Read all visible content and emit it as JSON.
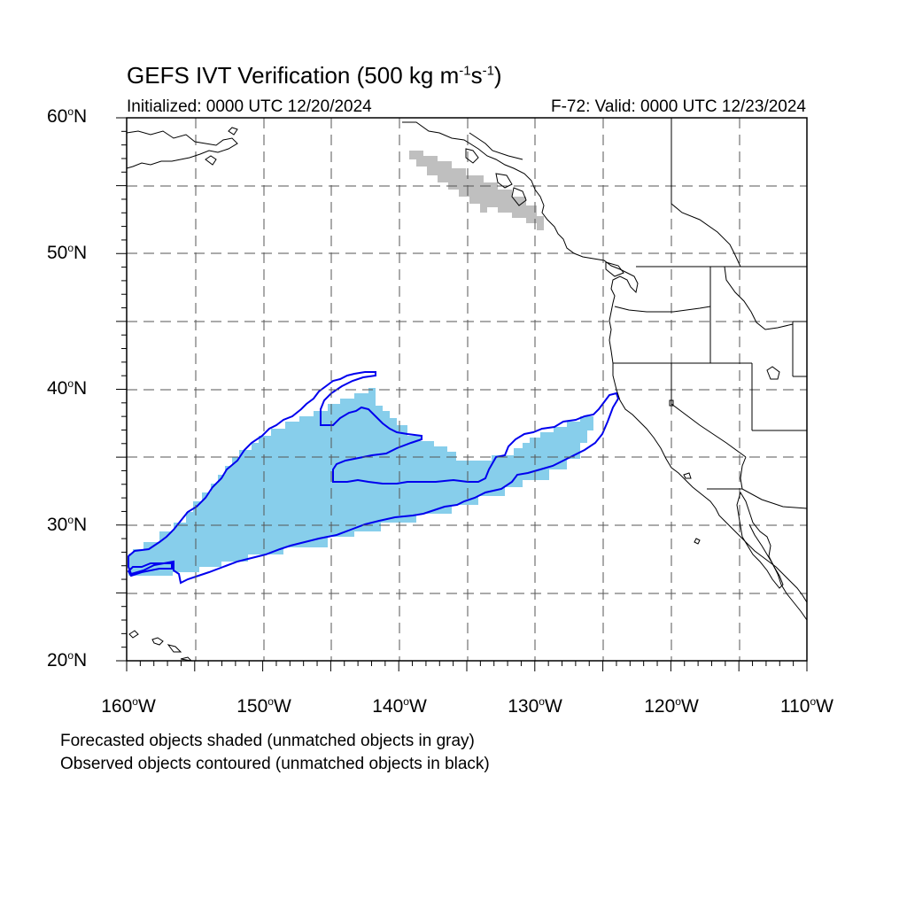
{
  "title": {
    "text": "GEFS IVT Verification (500 kg m",
    "exp1": "-1",
    "mid": "s",
    "exp2": "-1",
    "close": ")"
  },
  "init_label": "Initialized: 0000 UTC 12/20/2024",
  "valid_label": "F-72: Valid: 0000 UTC 12/23/2024",
  "degree_symbol": "o",
  "lat_labels": [
    {
      "num": "60",
      "hemi": "N"
    },
    {
      "num": "50",
      "hemi": "N"
    },
    {
      "num": "40",
      "hemi": "N"
    },
    {
      "num": "30",
      "hemi": "N"
    },
    {
      "num": "20",
      "hemi": "N"
    }
  ],
  "lon_labels": [
    {
      "num": "160",
      "hemi": "W"
    },
    {
      "num": "150",
      "hemi": "W"
    },
    {
      "num": "140",
      "hemi": "W"
    },
    {
      "num": "130",
      "hemi": "W"
    },
    {
      "num": "120",
      "hemi": "W"
    },
    {
      "num": "110",
      "hemi": "W"
    }
  ],
  "legend": {
    "forecast_note": "Forecasted objects shaded (unmatched objects in gray)",
    "observed_note": "Observed objects contoured (unmatched objects in black)"
  },
  "colors": {
    "forecast_matched": "#87ceeb",
    "forecast_unmatched": "#bfbfbf",
    "observed_matched": "#0000ee",
    "grid": "#555555",
    "coastline": "#000000"
  },
  "map_extent": {
    "lon": [
      -160,
      -110
    ],
    "lat": [
      20,
      60
    ]
  },
  "forecast_objects": [
    {
      "status": "matched",
      "region": "subtropical North Pacific atmospheric river, ~27N-40N, 160W-125W"
    },
    {
      "status": "unmatched",
      "region": "Gulf of Alaska / British Columbia coast, ~52N-56N"
    }
  ],
  "observed_objects": [
    {
      "status": "matched",
      "region": "subtropical North Pacific atmospheric river, ~26N-41N, 160W-124W"
    }
  ]
}
